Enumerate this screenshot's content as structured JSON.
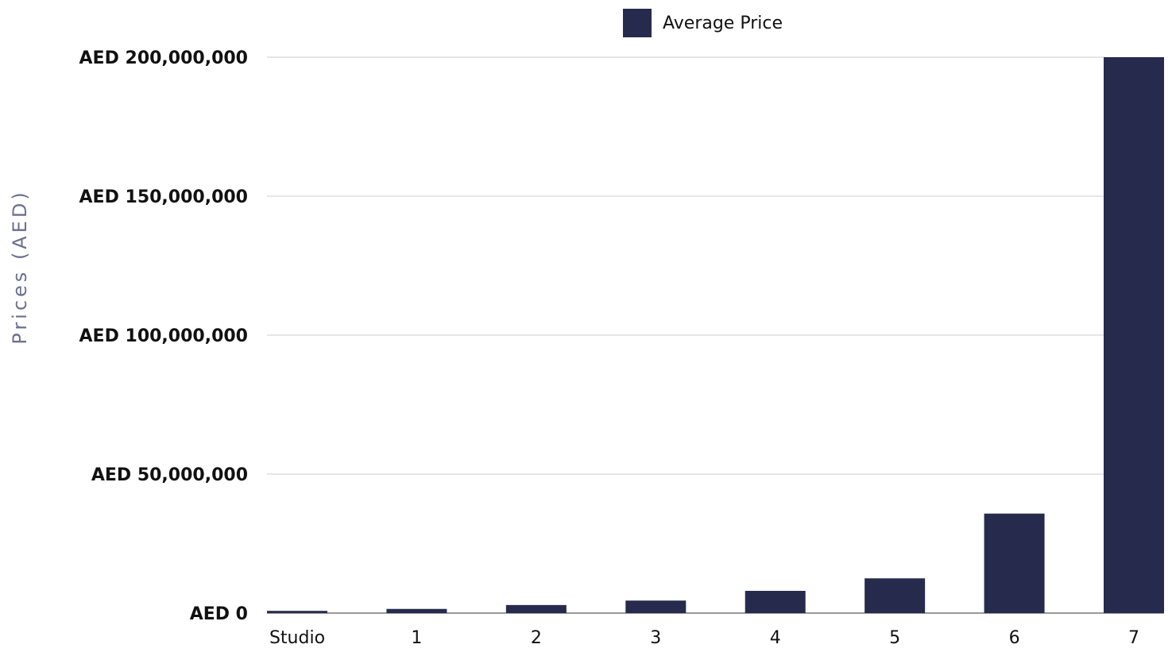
{
  "chart_data": {
    "type": "bar",
    "title": "",
    "xlabel": "",
    "ylabel": "Prices (AED)",
    "categories": [
      "Studio",
      "1",
      "2",
      "3",
      "4",
      "5",
      "6",
      "7"
    ],
    "series": [
      {
        "name": "Average Price",
        "color": "#262b4e",
        "values": [
          800000,
          1500000,
          2900000,
          4500000,
          8000000,
          12500000,
          35800000,
          200000000
        ]
      }
    ],
    "ylim": [
      0,
      200000000
    ],
    "yticks": [
      0,
      50000000,
      100000000,
      150000000,
      200000000
    ],
    "ytick_labels": [
      "AED 0",
      "AED 50,000,000",
      "AED 100,000,000",
      "AED 150,000,000",
      "AED 200,000,000"
    ],
    "grid": true,
    "legend_position": "top"
  }
}
